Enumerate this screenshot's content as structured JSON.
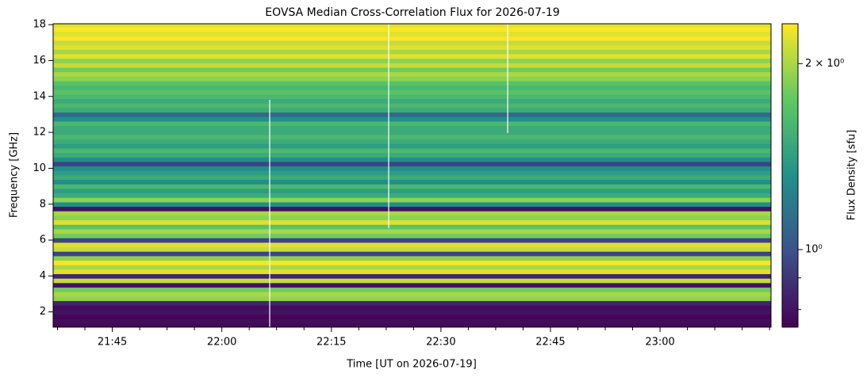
{
  "chart_data": {
    "type": "heatmap",
    "title": "EOVSA Median Cross-Correlation Flux for 2026-07-19",
    "xlabel": "Time [UT on 2026-07-19]",
    "ylabel": "Frequency [GHz]",
    "colorbar_label": "Flux Density [sfu]",
    "xlim": [
      1296.9,
      1395.2
    ],
    "xticks": [
      {
        "value": 1305,
        "label": "21:45"
      },
      {
        "value": 1320,
        "label": "22:00"
      },
      {
        "value": 1335,
        "label": "22:15"
      },
      {
        "value": 1350,
        "label": "22:30"
      },
      {
        "value": 1365,
        "label": "22:45"
      },
      {
        "value": 1380,
        "label": "23:00"
      }
    ],
    "xminorticks": [
      1297.5,
      1301.25,
      1308.75,
      1312.5,
      1316.25,
      1323.75,
      1327.5,
      1331.25,
      1338.75,
      1342.5,
      1346.25,
      1353.75,
      1357.5,
      1361.25,
      1368.75,
      1372.5,
      1376.25,
      1383.75,
      1387.5,
      1391.25,
      1395
    ],
    "ylim": [
      1.15,
      18.05
    ],
    "yticks": [
      2,
      4,
      6,
      8,
      10,
      12,
      14,
      16,
      18
    ],
    "y": [
      1.25,
      1.5,
      1.75,
      2.0,
      2.25,
      2.5,
      2.75,
      3.0,
      3.25,
      3.5,
      3.75,
      4.0,
      4.25,
      4.5,
      4.75,
      5.0,
      5.25,
      5.5,
      5.75,
      6.0,
      6.25,
      6.5,
      6.75,
      7.0,
      7.25,
      7.5,
      7.75,
      8.0,
      8.25,
      8.5,
      8.75,
      9.0,
      9.25,
      9.5,
      9.75,
      10.0,
      10.25,
      10.5,
      10.75,
      11.0,
      11.25,
      11.5,
      11.75,
      12.0,
      12.25,
      12.5,
      12.75,
      13.0,
      13.25,
      13.5,
      13.75,
      14.0,
      14.25,
      14.5,
      14.75,
      15.0,
      15.25,
      15.5,
      15.75,
      16.0,
      16.25,
      16.5,
      16.75,
      17.0,
      17.25,
      17.5,
      17.75,
      18.0
    ],
    "values": [
      0.77,
      0.78,
      0.76,
      0.8,
      0.78,
      0.85,
      1.9,
      2.0,
      1.8,
      0.8,
      2.1,
      0.85,
      2.2,
      2.0,
      2.3,
      1.9,
      0.95,
      2.1,
      2.2,
      0.95,
      1.8,
      2.0,
      1.7,
      2.2,
      1.9,
      2.0,
      0.8,
      1.3,
      1.9,
      1.5,
      1.4,
      1.6,
      1.3,
      1.5,
      1.4,
      1.3,
      0.95,
      1.3,
      1.5,
      1.6,
      1.4,
      1.5,
      1.6,
      1.5,
      1.5,
      1.6,
      1.3,
      1.1,
      1.5,
      1.6,
      1.5,
      1.6,
      1.7,
      1.6,
      1.7,
      1.9,
      2.0,
      1.8,
      2.1,
      1.9,
      2.2,
      2.0,
      2.2,
      2.1,
      2.3,
      2.2,
      2.3,
      2.2
    ],
    "colormap": "viridis",
    "clog": true,
    "clim": [
      0.749,
      2.32
    ],
    "cticks": [
      {
        "value": 1,
        "label": "10⁰"
      },
      {
        "value": 2,
        "label": "2 × 10⁰"
      }
    ],
    "cminorticks": [
      0.8,
      0.9
    ]
  }
}
